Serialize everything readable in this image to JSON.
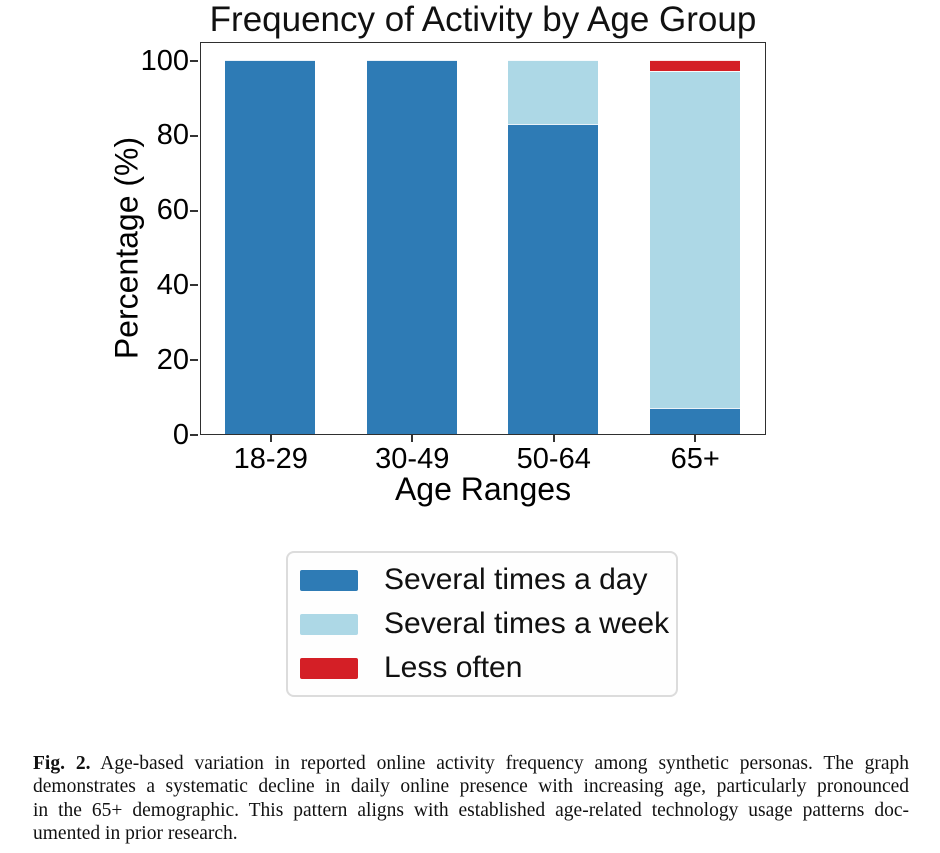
{
  "chart_data": {
    "type": "bar",
    "stacked": true,
    "title": "Frequency of Activity by Age Group",
    "xlabel": "Age Ranges",
    "ylabel": "Percentage (%)",
    "categories": [
      "18-29",
      "30-49",
      "50-64",
      "65+"
    ],
    "series": [
      {
        "name": "Several times a day",
        "color": "#2e7bb5",
        "values": [
          100,
          100,
          83,
          7
        ]
      },
      {
        "name": "Several times a week",
        "color": "#add8e6",
        "values": [
          0,
          0,
          17,
          90
        ]
      },
      {
        "name": "Less often",
        "color": "#d41f26",
        "values": [
          0,
          0,
          0,
          3
        ]
      }
    ],
    "yticks": [
      0,
      20,
      40,
      60,
      80,
      100
    ],
    "ylim": [
      0,
      105
    ],
    "grid": false,
    "legend_position": "below-chart"
  },
  "caption": {
    "label": "Fig. 2.",
    "lines": [
      "Age-based variation in reported online activity frequency among synthetic personas. The graph",
      "demonstrates a systematic decline in daily online presence with increasing age, particularly pronounced",
      "in the 65+ demographic. This pattern aligns with established age-related technology usage patterns doc-",
      "umented in prior research."
    ]
  }
}
